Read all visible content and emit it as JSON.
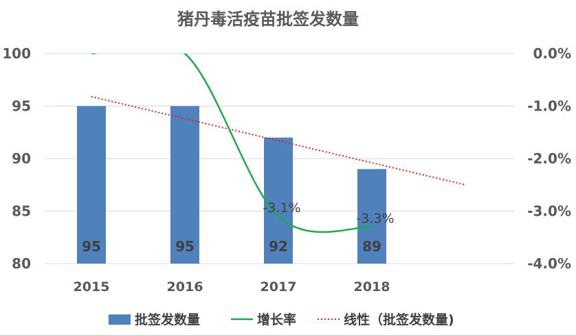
{
  "chart_data": {
    "type": "bar",
    "title": "猪丹毒活疫苗批签发数量",
    "categories": [
      "2015",
      "2016",
      "2017",
      "2018"
    ],
    "series": [
      {
        "name": "批签发数量",
        "type": "bar",
        "values": [
          95,
          95,
          92,
          89
        ],
        "data_labels": [
          "95",
          "95",
          "92",
          "89"
        ],
        "color": "#4f81bd"
      },
      {
        "name": "增长率",
        "type": "line",
        "axis": "right",
        "smooth": true,
        "values": [
          0.0,
          0.0,
          -3.1,
          -3.3
        ],
        "data_labels": [
          "",
          "",
          "-3.1%",
          "-3.3%"
        ],
        "color": "#1aac4a"
      },
      {
        "name": "线性（批签发数量)",
        "type": "trendline",
        "style": "dotted",
        "color": "#e0201c"
      }
    ],
    "left_axis": {
      "ylim": [
        80,
        100
      ],
      "ticks": [
        "80",
        "85",
        "90",
        "95",
        "100"
      ]
    },
    "right_axis": {
      "ylim": [
        -4.0,
        0.0
      ],
      "ticks": [
        "-4.0%",
        "-3.0%",
        "-2.0%",
        "-1.0%",
        "0.0%"
      ]
    },
    "grid": true,
    "legend_position": "bottom"
  }
}
